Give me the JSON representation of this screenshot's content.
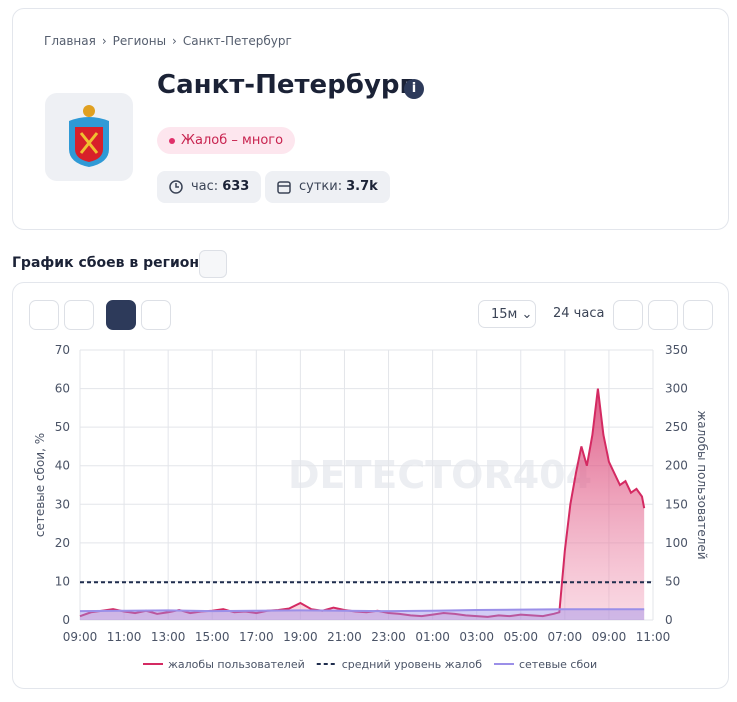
{
  "breadcrumb": [
    "Главная",
    "Регионы",
    "Санкт-Петербург"
  ],
  "header": {
    "title": "Санкт-Петербург",
    "status": "Жалоб – много",
    "stats": [
      {
        "label": "час:",
        "value": "633"
      },
      {
        "label": "сутки:",
        "value": "3.7k"
      }
    ]
  },
  "section_title": "График сбоев в регионе",
  "controls": {
    "interval": "15м",
    "range": "24 часа"
  },
  "watermark": "DETECTOR404",
  "chart_data": {
    "type": "line",
    "ylabel": "сетевые сбои, %",
    "y2label": "жалобы пользователей",
    "xlim": [
      0,
      26
    ],
    "xticks": [
      {
        "value": 0,
        "label": "09:00"
      },
      {
        "value": 2,
        "label": "11:00"
      },
      {
        "value": 4,
        "label": "13:00"
      },
      {
        "value": 6,
        "label": "15:00"
      },
      {
        "value": 8,
        "label": "17:00"
      },
      {
        "value": 10,
        "label": "19:00"
      },
      {
        "value": 12,
        "label": "21:00"
      },
      {
        "value": 14,
        "label": "23:00"
      },
      {
        "value": 16,
        "label": "01:00"
      },
      {
        "value": 18,
        "label": "03:00"
      },
      {
        "value": 20,
        "label": "05:00"
      },
      {
        "value": 22,
        "label": "07:00"
      },
      {
        "value": 24,
        "label": "09:00"
      },
      {
        "value": 26,
        "label": "11:00"
      }
    ],
    "ylim": [
      0,
      70
    ],
    "yticks": [
      0,
      10,
      20,
      30,
      40,
      50,
      60,
      70
    ],
    "y2lim": [
      0,
      350
    ],
    "y2ticks": [
      0,
      50,
      100,
      150,
      200,
      250,
      300,
      350
    ],
    "grid": true,
    "series": [
      {
        "name": "жалобы пользователей",
        "color": "#d42a62",
        "axis": "y2",
        "area": true,
        "x": [
          0,
          0.5,
          1,
          1.5,
          2,
          2.5,
          3,
          3.5,
          4,
          4.5,
          5,
          5.5,
          6,
          6.5,
          7,
          7.5,
          8,
          8.5,
          9,
          9.5,
          10,
          10.5,
          11,
          11.5,
          12,
          12.5,
          13,
          13.5,
          14,
          14.5,
          15,
          15.5,
          16,
          16.5,
          17,
          17.5,
          18,
          18.5,
          19,
          19.5,
          20,
          20.5,
          21,
          21.5,
          21.75,
          22,
          22.25,
          22.5,
          22.75,
          23,
          23.25,
          23.5,
          23.75,
          24,
          24.25,
          24.5,
          24.75,
          25,
          25.25,
          25.5,
          25.6
        ],
        "values": [
          5,
          10,
          12,
          14,
          11,
          9,
          12,
          8,
          10,
          13,
          9,
          11,
          12,
          14,
          10,
          11,
          9,
          12,
          13,
          15,
          22,
          14,
          12,
          16,
          13,
          11,
          10,
          12,
          9,
          8,
          6,
          5,
          7,
          9,
          8,
          6,
          5,
          4,
          6,
          5,
          7,
          6,
          5,
          8,
          10,
          90,
          150,
          190,
          225,
          200,
          240,
          300,
          240,
          205,
          190,
          175,
          180,
          165,
          170,
          160,
          145
        ]
      },
      {
        "name": "средний уровень жалоб",
        "color": "#1f2d4d",
        "axis": "y2",
        "dash": true,
        "value": 49
      },
      {
        "name": "сетевые сбои",
        "color": "#9b8fe8",
        "axis": "y",
        "area": true,
        "x": [
          0,
          2,
          4,
          6,
          8,
          10,
          12,
          14,
          16,
          18,
          20,
          22,
          24,
          25.6
        ],
        "values": [
          2.3,
          2.4,
          2.5,
          2.3,
          2.4,
          2.5,
          2.4,
          2.3,
          2.4,
          2.6,
          2.7,
          2.8,
          2.8,
          2.8
        ]
      }
    ]
  }
}
